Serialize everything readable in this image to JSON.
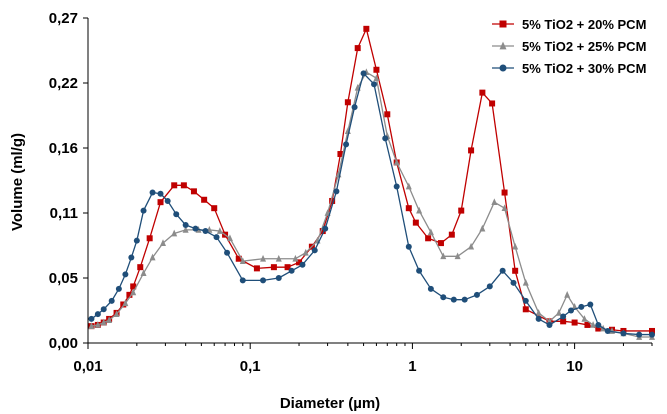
{
  "chart_data": {
    "type": "line",
    "title": "",
    "xlabel": "Diameter (µm)",
    "ylabel": "Volume (ml/g)",
    "xscale": "log",
    "xlim": [
      0.01,
      30
    ],
    "ylim": [
      0,
      0.27
    ],
    "x_ticks": [
      {
        "value": 0.01,
        "label": "0,01"
      },
      {
        "value": 0.1,
        "label": "0,1"
      },
      {
        "value": 1,
        "label": "1"
      },
      {
        "value": 10,
        "label": "10"
      }
    ],
    "y_ticks": [
      {
        "value": 0,
        "label": "0,00"
      },
      {
        "value": 0.054,
        "label": "0,05"
      },
      {
        "value": 0.108,
        "label": "0,11"
      },
      {
        "value": 0.162,
        "label": "0,16"
      },
      {
        "value": 0.216,
        "label": "0,22"
      },
      {
        "value": 0.27,
        "label": "0,27"
      }
    ],
    "grid": false,
    "legend_position": "top-right",
    "series": [
      {
        "name": "5% TiO2 + 20% PCM",
        "color": "#c00000",
        "marker": "square",
        "points": [
          [
            0.0105,
            0.014
          ],
          [
            0.0115,
            0.015
          ],
          [
            0.0125,
            0.017
          ],
          [
            0.0135,
            0.02
          ],
          [
            0.015,
            0.025
          ],
          [
            0.0165,
            0.032
          ],
          [
            0.018,
            0.04
          ],
          [
            0.019,
            0.047
          ],
          [
            0.021,
            0.063
          ],
          [
            0.024,
            0.087
          ],
          [
            0.028,
            0.117
          ],
          [
            0.034,
            0.131
          ],
          [
            0.039,
            0.131
          ],
          [
            0.045,
            0.126
          ],
          [
            0.052,
            0.119
          ],
          [
            0.06,
            0.112
          ],
          [
            0.07,
            0.09
          ],
          [
            0.085,
            0.07
          ],
          [
            0.11,
            0.062
          ],
          [
            0.14,
            0.063
          ],
          [
            0.17,
            0.063
          ],
          [
            0.2,
            0.067
          ],
          [
            0.24,
            0.08
          ],
          [
            0.28,
            0.093
          ],
          [
            0.32,
            0.118
          ],
          [
            0.36,
            0.157
          ],
          [
            0.4,
            0.2
          ],
          [
            0.46,
            0.245
          ],
          [
            0.52,
            0.261
          ],
          [
            0.6,
            0.227
          ],
          [
            0.7,
            0.19
          ],
          [
            0.8,
            0.15
          ],
          [
            0.95,
            0.112
          ],
          [
            1.05,
            0.1
          ],
          [
            1.25,
            0.087
          ],
          [
            1.5,
            0.083
          ],
          [
            1.75,
            0.09
          ],
          [
            2.0,
            0.11
          ],
          [
            2.3,
            0.16
          ],
          [
            2.7,
            0.208
          ],
          [
            3.1,
            0.199
          ],
          [
            3.7,
            0.125
          ],
          [
            4.3,
            0.06
          ],
          [
            5.0,
            0.028
          ],
          [
            7.0,
            0.018
          ],
          [
            8.5,
            0.018
          ],
          [
            10.0,
            0.017
          ],
          [
            12.0,
            0.015
          ],
          [
            14.0,
            0.012
          ],
          [
            17.0,
            0.011
          ],
          [
            20.0,
            0.01
          ],
          [
            30.0,
            0.01
          ]
        ]
      },
      {
        "name": "5% TiO2 + 25% PCM",
        "color": "#8c8c8c",
        "marker": "triangle",
        "points": [
          [
            0.0105,
            0.014
          ],
          [
            0.0115,
            0.015
          ],
          [
            0.0125,
            0.017
          ],
          [
            0.0135,
            0.019
          ],
          [
            0.015,
            0.024
          ],
          [
            0.017,
            0.033
          ],
          [
            0.019,
            0.042
          ],
          [
            0.022,
            0.058
          ],
          [
            0.025,
            0.071
          ],
          [
            0.029,
            0.083
          ],
          [
            0.034,
            0.091
          ],
          [
            0.04,
            0.094
          ],
          [
            0.048,
            0.094
          ],
          [
            0.056,
            0.094
          ],
          [
            0.065,
            0.093
          ],
          [
            0.075,
            0.087
          ],
          [
            0.09,
            0.068
          ],
          [
            0.12,
            0.07
          ],
          [
            0.15,
            0.07
          ],
          [
            0.19,
            0.07
          ],
          [
            0.22,
            0.075
          ],
          [
            0.26,
            0.085
          ],
          [
            0.3,
            0.108
          ],
          [
            0.35,
            0.14
          ],
          [
            0.4,
            0.176
          ],
          [
            0.46,
            0.212
          ],
          [
            0.52,
            0.225
          ],
          [
            0.6,
            0.22
          ],
          [
            0.7,
            0.172
          ],
          [
            0.8,
            0.15
          ],
          [
            0.95,
            0.13
          ],
          [
            1.1,
            0.11
          ],
          [
            1.3,
            0.092
          ],
          [
            1.55,
            0.072
          ],
          [
            1.9,
            0.072
          ],
          [
            2.3,
            0.08
          ],
          [
            2.7,
            0.095
          ],
          [
            3.2,
            0.117
          ],
          [
            3.7,
            0.112
          ],
          [
            4.3,
            0.08
          ],
          [
            5.0,
            0.05
          ],
          [
            6.0,
            0.025
          ],
          [
            7.0,
            0.018
          ],
          [
            8.0,
            0.025
          ],
          [
            9.0,
            0.04
          ],
          [
            10.0,
            0.03
          ],
          [
            11.5,
            0.02
          ],
          [
            13.0,
            0.015
          ],
          [
            15.0,
            0.012
          ],
          [
            17.0,
            0.01
          ],
          [
            20.0,
            0.008
          ],
          [
            25.0,
            0.005
          ],
          [
            30.0,
            0.005
          ]
        ]
      },
      {
        "name": "5% TiO2 + 30% PCM",
        "color": "#1f4e79",
        "marker": "circle",
        "points": [
          [
            0.0105,
            0.02
          ],
          [
            0.0115,
            0.024
          ],
          [
            0.0125,
            0.028
          ],
          [
            0.014,
            0.035
          ],
          [
            0.0155,
            0.045
          ],
          [
            0.017,
            0.057
          ],
          [
            0.0185,
            0.071
          ],
          [
            0.02,
            0.085
          ],
          [
            0.022,
            0.11
          ],
          [
            0.025,
            0.125
          ],
          [
            0.028,
            0.124
          ],
          [
            0.031,
            0.118
          ],
          [
            0.035,
            0.107
          ],
          [
            0.04,
            0.098
          ],
          [
            0.046,
            0.095
          ],
          [
            0.053,
            0.093
          ],
          [
            0.062,
            0.088
          ],
          [
            0.072,
            0.075
          ],
          [
            0.09,
            0.052
          ],
          [
            0.12,
            0.052
          ],
          [
            0.15,
            0.054
          ],
          [
            0.18,
            0.06
          ],
          [
            0.21,
            0.065
          ],
          [
            0.25,
            0.077
          ],
          [
            0.29,
            0.095
          ],
          [
            0.34,
            0.126
          ],
          [
            0.39,
            0.165
          ],
          [
            0.44,
            0.196
          ],
          [
            0.5,
            0.224
          ],
          [
            0.58,
            0.215
          ],
          [
            0.68,
            0.17
          ],
          [
            0.8,
            0.13
          ],
          [
            0.95,
            0.08
          ],
          [
            1.1,
            0.06
          ],
          [
            1.3,
            0.045
          ],
          [
            1.55,
            0.038
          ],
          [
            1.8,
            0.036
          ],
          [
            2.1,
            0.036
          ],
          [
            2.5,
            0.04
          ],
          [
            3.0,
            0.047
          ],
          [
            3.6,
            0.06
          ],
          [
            4.2,
            0.05
          ],
          [
            5.0,
            0.035
          ],
          [
            6.0,
            0.02
          ],
          [
            7.0,
            0.015
          ],
          [
            8.5,
            0.022
          ],
          [
            9.5,
            0.027
          ],
          [
            11.0,
            0.03
          ],
          [
            12.5,
            0.032
          ],
          [
            14.0,
            0.015
          ],
          [
            16.0,
            0.01
          ],
          [
            20.0,
            0.008
          ],
          [
            25.0,
            0.007
          ],
          [
            30.0,
            0.007
          ]
        ]
      }
    ]
  }
}
